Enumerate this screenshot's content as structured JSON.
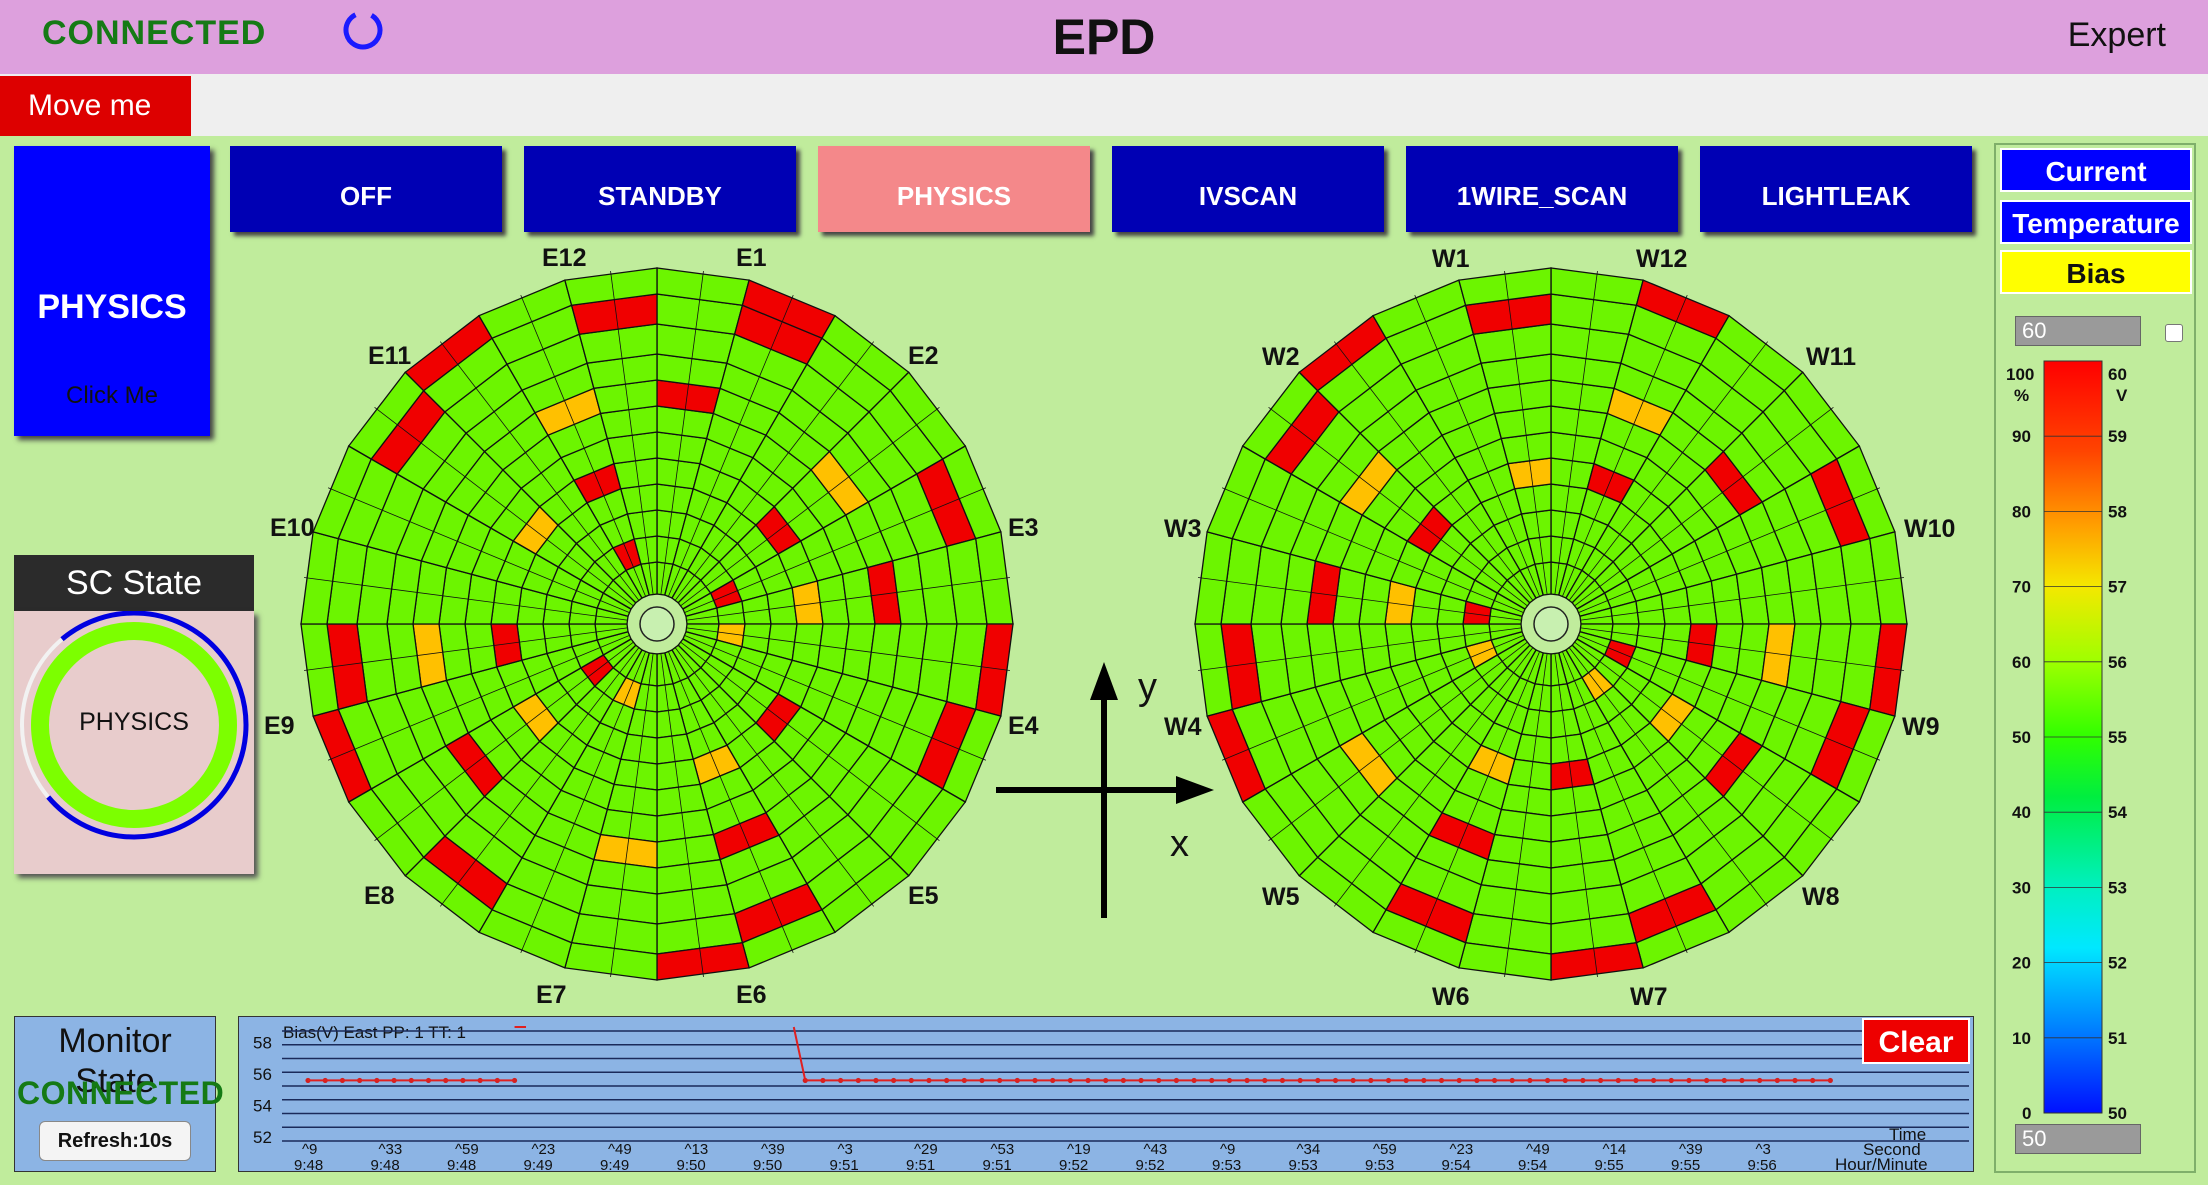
{
  "header": {
    "status": "CONNECTED",
    "title": "EPD",
    "mode": "Expert",
    "move_label": "Move me"
  },
  "state_buttons": [
    "OFF",
    "STANDBY",
    "PHYSICS",
    "IVSCAN",
    "1WIRE_SCAN",
    "LIGHTLEAK"
  ],
  "active_state": "PHYSICS",
  "big_button": {
    "title": "PHYSICS",
    "subtitle": "Click Me"
  },
  "sc_state": {
    "title": "SC State",
    "value": "PHYSICS"
  },
  "wheels": {
    "east": {
      "labels": [
        "E12",
        "E1",
        "E2",
        "E3",
        "E4",
        "E5",
        "E6",
        "E7",
        "E8",
        "E9",
        "E10",
        "E11"
      ]
    },
    "west": {
      "labels": [
        "W1",
        "W12",
        "W11",
        "W10",
        "W9",
        "W8",
        "W7",
        "W6",
        "W5",
        "W4",
        "W3",
        "W2"
      ]
    }
  },
  "axes": {
    "y_label": "y",
    "x_label": "x"
  },
  "right_panel": {
    "buttons": [
      {
        "label": "Current",
        "bg": "#0000ff",
        "fg": "#ffffff"
      },
      {
        "label": "Temperature",
        "bg": "#0000ff",
        "fg": "#ffffff"
      },
      {
        "label": "Bias",
        "bg": "#ffff00",
        "fg": "#111111"
      }
    ],
    "max_input": "60",
    "min_input": "50",
    "scale_percent_unit": "%",
    "scale_volt_unit": "V",
    "scale_percent_ticks": [
      "100",
      "90",
      "80",
      "70",
      "60",
      "50",
      "40",
      "30",
      "20",
      "10",
      "0"
    ],
    "scale_volt_ticks": [
      "60",
      "59",
      "58",
      "57",
      "56",
      "55",
      "54",
      "53",
      "52",
      "51",
      "50"
    ]
  },
  "monitor": {
    "title": "Monitor State",
    "status": "CONNECTED",
    "refresh_label": "Refresh:10s",
    "clear_label": "Clear"
  },
  "chart_data": {
    "type": "line",
    "title": "Bias(V) East PP: 1 TT: 1",
    "xlabel": "Time Second Hour/Minute",
    "ylabel": "",
    "y_ticks": [
      "58",
      "56",
      "54",
      "52"
    ],
    "ylim": [
      52,
      59
    ],
    "x_ticks": [
      {
        "sec": "9",
        "hm": "9:48"
      },
      {
        "sec": "33",
        "hm": "9:48"
      },
      {
        "sec": "59",
        "hm": "9:48"
      },
      {
        "sec": "23",
        "hm": "9:49"
      },
      {
        "sec": "49",
        "hm": "9:49"
      },
      {
        "sec": "13",
        "hm": "9:50"
      },
      {
        "sec": "39",
        "hm": "9:50"
      },
      {
        "sec": "3",
        "hm": "9:51"
      },
      {
        "sec": "29",
        "hm": "9:51"
      },
      {
        "sec": "53",
        "hm": "9:51"
      },
      {
        "sec": "19",
        "hm": "9:52"
      },
      {
        "sec": "43",
        "hm": "9:52"
      },
      {
        "sec": "9",
        "hm": "9:53"
      },
      {
        "sec": "34",
        "hm": "9:53"
      },
      {
        "sec": "59",
        "hm": "9:53"
      },
      {
        "sec": "23",
        "hm": "9:54"
      },
      {
        "sec": "49",
        "hm": "9:54"
      },
      {
        "sec": "14",
        "hm": "9:55"
      },
      {
        "sec": "39",
        "hm": "9:55"
      },
      {
        "sec": "3",
        "hm": "9:56"
      }
    ],
    "series": [
      {
        "segments": [
          {
            "x_from_tick": 0,
            "x_to_tick": 2.7,
            "y": 55.6
          },
          {
            "x_from_tick": 2.7,
            "x_to_tick": 2.85,
            "y_to": 59
          },
          {
            "x_from_tick": 6.35,
            "x_to_tick": 6.5,
            "y_from": 59,
            "y": 55.6
          },
          {
            "x_from_tick": 6.5,
            "x_to_tick": 19.9,
            "y": 55.6
          }
        ]
      }
    ]
  }
}
